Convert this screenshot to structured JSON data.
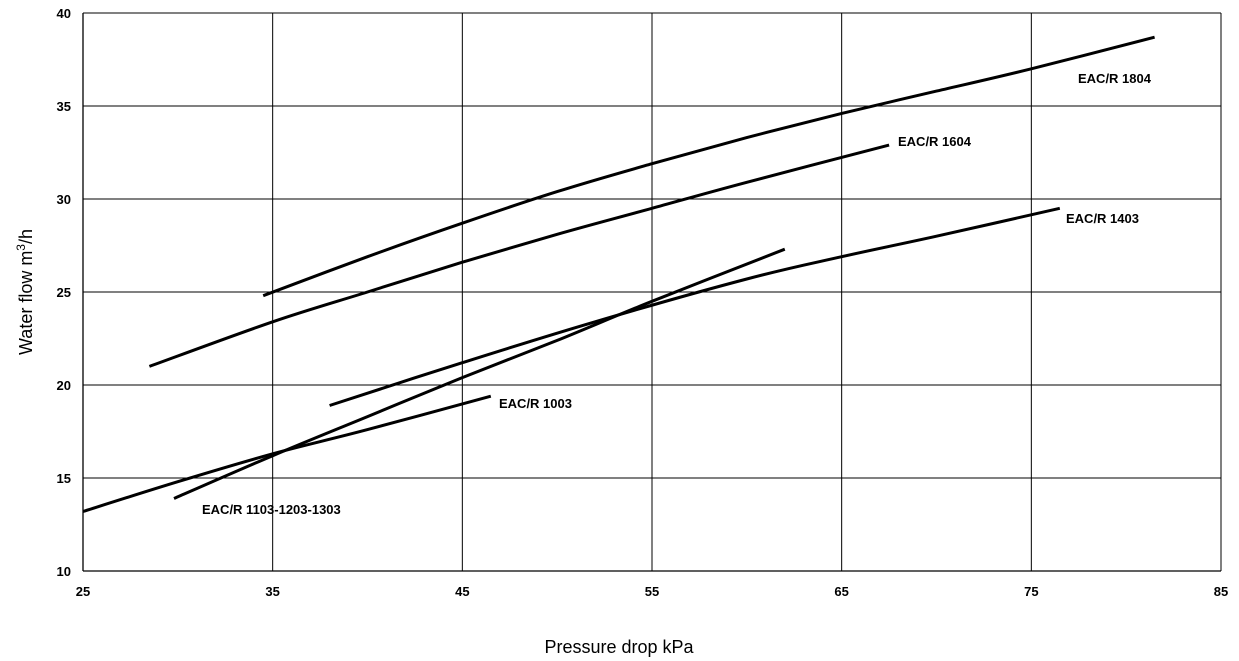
{
  "chart_data": {
    "type": "line",
    "xlabel": "Pressure drop kPa",
    "ylabel_main": "Water flow m",
    "ylabel_sup": "3",
    "ylabel_tail": "/h",
    "xlim": [
      25,
      85
    ],
    "ylim": [
      10,
      40
    ],
    "xticks": [
      25,
      35,
      45,
      55,
      65,
      75,
      85
    ],
    "yticks": [
      10,
      15,
      20,
      25,
      30,
      35,
      40
    ],
    "grid": true,
    "series": [
      {
        "name": "EAC/R 1804",
        "x": [
          34.5,
          40,
          45,
          50,
          55,
          60,
          65,
          70,
          75,
          81.5
        ],
        "y": [
          24.8,
          26.9,
          28.7,
          30.4,
          31.9,
          33.3,
          34.6,
          35.8,
          37.0,
          38.7
        ]
      },
      {
        "name": "EAC/R 1604",
        "x": [
          28.5,
          35,
          40,
          45,
          50,
          55,
          60,
          67.5
        ],
        "y": [
          21.0,
          23.4,
          25.0,
          26.6,
          28.1,
          29.5,
          30.9,
          32.9
        ]
      },
      {
        "name": "EAC/R 1403",
        "x": [
          38,
          45,
          52,
          60,
          65,
          70,
          76.5
        ],
        "y": [
          18.9,
          21.2,
          23.4,
          25.7,
          26.9,
          28.0,
          29.5
        ]
      },
      {
        "name": "EAC/R 1003",
        "x": [
          25,
          30,
          35,
          40,
          46.5
        ],
        "y": [
          13.2,
          14.8,
          16.3,
          17.6,
          19.4
        ]
      },
      {
        "name": "EAC/R 1103-1203-1303",
        "x": [
          29.8,
          35,
          40,
          45,
          50,
          55,
          62
        ],
        "y": [
          13.9,
          16.2,
          18.3,
          20.4,
          22.4,
          24.5,
          27.3
        ]
      }
    ]
  }
}
